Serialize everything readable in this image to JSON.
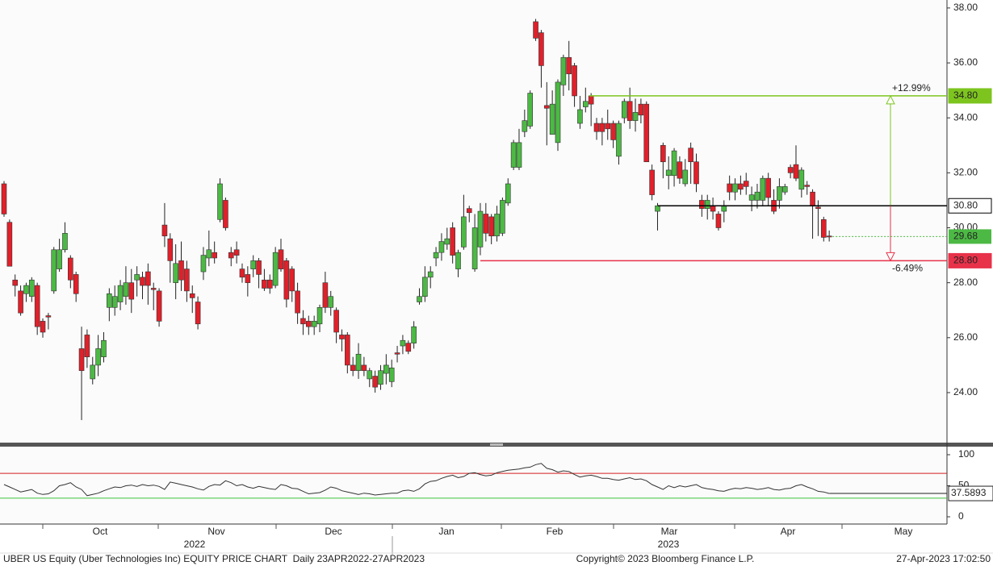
{
  "chart_data": [
    {
      "type": "candlestick",
      "open": [
        31.6,
        30.2,
        28.1,
        27.7,
        27.6,
        27.5,
        27.9,
        26.6,
        26.8,
        27.7,
        28.5,
        29.2,
        28.9,
        28.3,
        25.6,
        26.1,
        24.5,
        25.0,
        25.3,
        27.1,
        27.1,
        27.3,
        27.5,
        28.0,
        28.1,
        28.2,
        28.4,
        27.8,
        27.7,
        30.1,
        29.6,
        28.0,
        28.8,
        28.5,
        27.6,
        27.3,
        28.4,
        28.9,
        29.1,
        30.3,
        31.0,
        29.1,
        29.2,
        28.5,
        28.3,
        28.5,
        28.8,
        28.1,
        28.1,
        27.9,
        29.2,
        28.8,
        28.5,
        27.7,
        26.7,
        26.6,
        26.4,
        26.5,
        28.0,
        27.1,
        27.0,
        26.1,
        26.1,
        25.0,
        24.8,
        25.0,
        24.5,
        24.6,
        24.3,
        24.7,
        24.4,
        25.45,
        25.7,
        25.8,
        25.8,
        27.3,
        27.5,
        28.2,
        28.9,
        29.1,
        29.4,
        30.0,
        28.5,
        29.3,
        30.7,
        28.5,
        29.3,
        30.5,
        30.4,
        29.7,
        29.8,
        30.9,
        32.2,
        32.2,
        33.5,
        33.7,
        37.5,
        37.1,
        34.45,
        33.4,
        33.1,
        35.2,
        36.2,
        35.9,
        33.8,
        34.4,
        34.8,
        33.8,
        33.8,
        33.8,
        33.8,
        32.6,
        34.0,
        34.6,
        33.9,
        34.5,
        34.5,
        32.1,
        30.6,
        33.0,
        31.9,
        31.9,
        32.4,
        31.6,
        32.9,
        32.4,
        31.0,
        30.7,
        30.8,
        30.5,
        30.6,
        31.6,
        31.3,
        31.6,
        31.7,
        31.0,
        31.0,
        31.0,
        31.8,
        31.0,
        31.0,
        31.3,
        32.2,
        32.3,
        31.4,
        31.55,
        31.3,
        30.75,
        30.3,
        29.7
      ],
      "high": [
        31.7,
        30.3,
        28.3,
        27.9,
        28.0,
        28.2,
        28.0,
        26.7,
        26.9,
        29.3,
        29.6,
        30.2,
        29.0,
        28.4,
        26.4,
        26.3,
        25.3,
        26.1,
        26.2,
        27.8,
        27.9,
        28.1,
        28.6,
        28.5,
        28.6,
        28.4,
        28.7,
        28.0,
        27.8,
        30.9,
        29.8,
        29.4,
        29.5,
        28.8,
        27.9,
        27.5,
        29.3,
        29.9,
        29.5,
        31.8,
        31.1,
        29.3,
        29.5,
        28.7,
        28.6,
        29.0,
        28.9,
        28.5,
        28.3,
        29.3,
        29.6,
        28.9,
        28.6,
        28.0,
        27.0,
        26.8,
        26.8,
        27.2,
        28.4,
        27.7,
        27.1,
        26.3,
        26.2,
        25.3,
        25.8,
        25.3,
        24.9,
        24.8,
        25.0,
        25.4,
        25.2,
        25.7,
        26.1,
        25.9,
        26.6,
        27.8,
        28.6,
        28.6,
        29.3,
        29.8,
        30.0,
        30.2,
        29.2,
        31.2,
        30.8,
        30.5,
        30.9,
        30.9,
        30.5,
        30.8,
        31.1,
        31.8,
        33.2,
        33.6,
        34.3,
        35.0,
        37.6,
        37.2,
        35.3,
        35.0,
        35.4,
        36.3,
        36.8,
        36.0,
        34.8,
        35.1,
        34.9,
        34.0,
        34.0,
        34.3,
        33.9,
        33.9,
        34.7,
        35.1,
        34.7,
        34.7,
        34.6,
        32.3,
        30.9,
        33.1,
        32.6,
        32.9,
        32.6,
        32.5,
        33.1,
        32.7,
        31.2,
        31.2,
        31.1,
        30.6,
        31.0,
        31.9,
        31.8,
        31.9,
        32.0,
        31.5,
        31.6,
        31.9,
        32.0,
        31.4,
        31.8,
        31.6,
        32.3,
        33.0,
        32.2,
        31.7,
        31.4,
        31.0,
        30.4,
        29.9
      ],
      "low": [
        30.4,
        28.6,
        27.5,
        26.8,
        27.3,
        27.3,
        26.1,
        26.0,
        26.3,
        27.6,
        28.4,
        29.1,
        27.8,
        27.3,
        23.0,
        24.9,
        24.3,
        24.6,
        25.1,
        26.6,
        26.8,
        27.0,
        27.2,
        26.9,
        27.5,
        27.4,
        27.2,
        27.0,
        26.4,
        29.3,
        28.0,
        27.4,
        27.7,
        27.3,
        26.9,
        26.3,
        28.1,
        28.6,
        28.7,
        30.2,
        29.9,
        28.6,
        28.7,
        28.0,
        27.5,
        28.2,
        27.8,
        27.7,
        27.6,
        27.8,
        28.4,
        27.1,
        27.3,
        26.5,
        26.1,
        26.1,
        26.1,
        26.2,
        26.9,
        26.8,
        25.8,
        25.5,
        24.7,
        24.6,
        24.5,
        24.6,
        24.2,
        24.0,
        24.1,
        24.3,
        24.2,
        25.1,
        25.4,
        25.4,
        25.6,
        27.2,
        27.3,
        27.8,
        28.6,
        28.8,
        29.2,
        28.7,
        28.2,
        29.2,
        30.2,
        28.4,
        29.0,
        29.5,
        29.4,
        29.5,
        29.7,
        30.8,
        32.1,
        32.1,
        33.3,
        33.6,
        36.8,
        35.1,
        33.0,
        33.4,
        32.8,
        34.8,
        35.0,
        34.4,
        33.6,
        34.2,
        33.7,
        33.2,
        33.0,
        33.2,
        32.9,
        32.3,
        33.8,
        33.6,
        33.5,
        33.8,
        32.4,
        31.0,
        29.9,
        31.8,
        31.4,
        31.5,
        31.6,
        31.5,
        31.6,
        31.3,
        30.4,
        30.3,
        30.3,
        29.9,
        30.2,
        31.0,
        31.0,
        31.2,
        31.2,
        30.6,
        30.7,
        30.8,
        30.8,
        30.5,
        30.7,
        31.2,
        31.8,
        31.7,
        31.1,
        31.2,
        29.6,
        29.7,
        29.5,
        29.5
      ],
      "close": [
        30.5,
        28.6,
        27.9,
        26.9,
        27.9,
        28.1,
        26.4,
        26.2,
        26.75,
        29.2,
        29.2,
        29.8,
        28.1,
        27.6,
        24.8,
        25.3,
        25.0,
        25.6,
        25.9,
        27.6,
        27.5,
        27.9,
        28.0,
        27.4,
        28.3,
        27.9,
        27.9,
        27.75,
        26.6,
        29.7,
        28.8,
        28.7,
        28.1,
        27.7,
        27.45,
        26.5,
        29.0,
        29.2,
        28.9,
        31.6,
        30.0,
        28.9,
        29.0,
        28.2,
        28.0,
        28.8,
        28.3,
        27.8,
        27.8,
        29.1,
        28.5,
        27.4,
        27.7,
        26.9,
        26.5,
        26.4,
        26.6,
        27.1,
        27.1,
        27.5,
        26.2,
        25.95,
        25.0,
        24.8,
        25.4,
        24.8,
        24.8,
        24.2,
        24.8,
        25.0,
        24.9,
        25.4,
        25.9,
        25.5,
        26.4,
        27.5,
        28.2,
        28.4,
        29.1,
        29.5,
        29.6,
        29.0,
        29.1,
        30.4,
        30.55,
        30.0,
        30.6,
        29.8,
        29.7,
        30.5,
        31.0,
        31.6,
        33.1,
        33.1,
        33.9,
        34.9,
        36.9,
        35.9,
        34.35,
        34.5,
        35.3,
        36.2,
        35.6,
        34.8,
        34.3,
        34.6,
        34.5,
        33.5,
        33.5,
        33.6,
        33.2,
        33.8,
        34.6,
        33.9,
        34.2,
        34.1,
        32.4,
        31.2,
        30.8,
        32.4,
        32.1,
        32.8,
        31.8,
        32.1,
        32.4,
        31.6,
        30.7,
        31.0,
        30.6,
        30.0,
        30.8,
        31.3,
        31.6,
        31.4,
        31.5,
        31.2,
        31.3,
        31.8,
        31.1,
        30.6,
        31.5,
        31.5,
        32.0,
        31.8,
        32.1,
        31.5,
        30.8,
        30.7,
        29.65,
        29.68
      ],
      "up_color": "#4cb944",
      "down_color": "#e0202a",
      "ylim": [
        22.18,
        38.29
      ],
      "yticks": [
        {
          "value": 24,
          "label": "24.00"
        },
        {
          "value": 26,
          "label": "26.00"
        },
        {
          "value": 28,
          "label": "28.00"
        },
        {
          "value": 30,
          "label": "30.00"
        },
        {
          "value": 32,
          "label": "32.00"
        },
        {
          "value": 34,
          "label": "34.00"
        },
        {
          "value": 36,
          "label": "36.00"
        },
        {
          "value": 38,
          "label": "38.00"
        }
      ],
      "levels": [
        {
          "value": 34.8,
          "label": "34.80",
          "color": "#7dc41f",
          "change": "+12.99%"
        },
        {
          "value": 30.8,
          "label": "30.80",
          "color": "#000000"
        },
        {
          "value": 28.8,
          "label": "28.80",
          "color": "#e8324a",
          "change": "-6.49%"
        }
      ],
      "last_color": "#4cb944",
      "x_labels": [
        "Oct",
        "Nov",
        "Dec",
        "Jan",
        "Feb",
        "Mar",
        "Apr",
        "May"
      ],
      "year_labels": [
        "2022",
        "2023"
      ]
    },
    {
      "type": "line",
      "values": [
        52,
        48,
        44,
        40,
        42,
        44,
        38,
        36,
        37,
        42,
        50,
        52,
        55,
        48,
        44,
        34,
        36,
        38,
        42,
        45,
        48,
        47,
        50,
        51,
        49,
        52,
        50,
        51,
        49,
        44,
        56,
        54,
        52,
        50,
        48,
        45,
        43,
        49,
        52,
        51,
        58,
        55,
        50,
        52,
        48,
        46,
        49,
        47,
        45,
        44,
        52,
        50,
        46,
        45,
        41,
        37,
        38,
        39,
        43,
        48,
        46,
        42,
        40,
        38,
        36,
        38,
        37,
        35,
        36,
        37,
        38,
        38,
        42,
        43,
        41,
        45,
        53,
        57,
        58,
        62,
        65,
        67,
        63,
        65,
        70,
        71,
        68,
        66,
        67,
        71,
        73,
        75,
        76,
        77,
        79,
        80,
        84,
        86,
        78,
        76,
        72,
        74,
        73,
        68,
        64,
        66,
        67,
        65,
        62,
        62,
        60,
        59,
        61,
        63,
        60,
        61,
        58,
        52,
        48,
        44,
        50,
        47,
        50,
        48,
        50,
        52,
        47,
        45,
        44,
        42,
        41,
        44,
        46,
        45,
        47,
        46,
        44,
        45,
        47,
        44,
        43,
        45,
        46,
        50,
        52,
        48,
        45,
        41,
        40,
        37.5893
      ],
      "color": "#333333",
      "ylim": [
        -11.7,
        111.7
      ],
      "yticks": [
        0,
        50,
        100
      ],
      "levels": [
        {
          "value": 70,
          "color": "#d42020"
        },
        {
          "value": 30,
          "color": "#3cc43c"
        }
      ]
    }
  ],
  "footer": {
    "left": "UBER US Equity (Uber Technologies Inc) EQUITY PRICE CHART  Daily 23APR2022-27APR2023",
    "center": "Copyright© 2023 Bloomberg Finance L.P.",
    "right": "27-Apr-2023 17:02:50"
  }
}
